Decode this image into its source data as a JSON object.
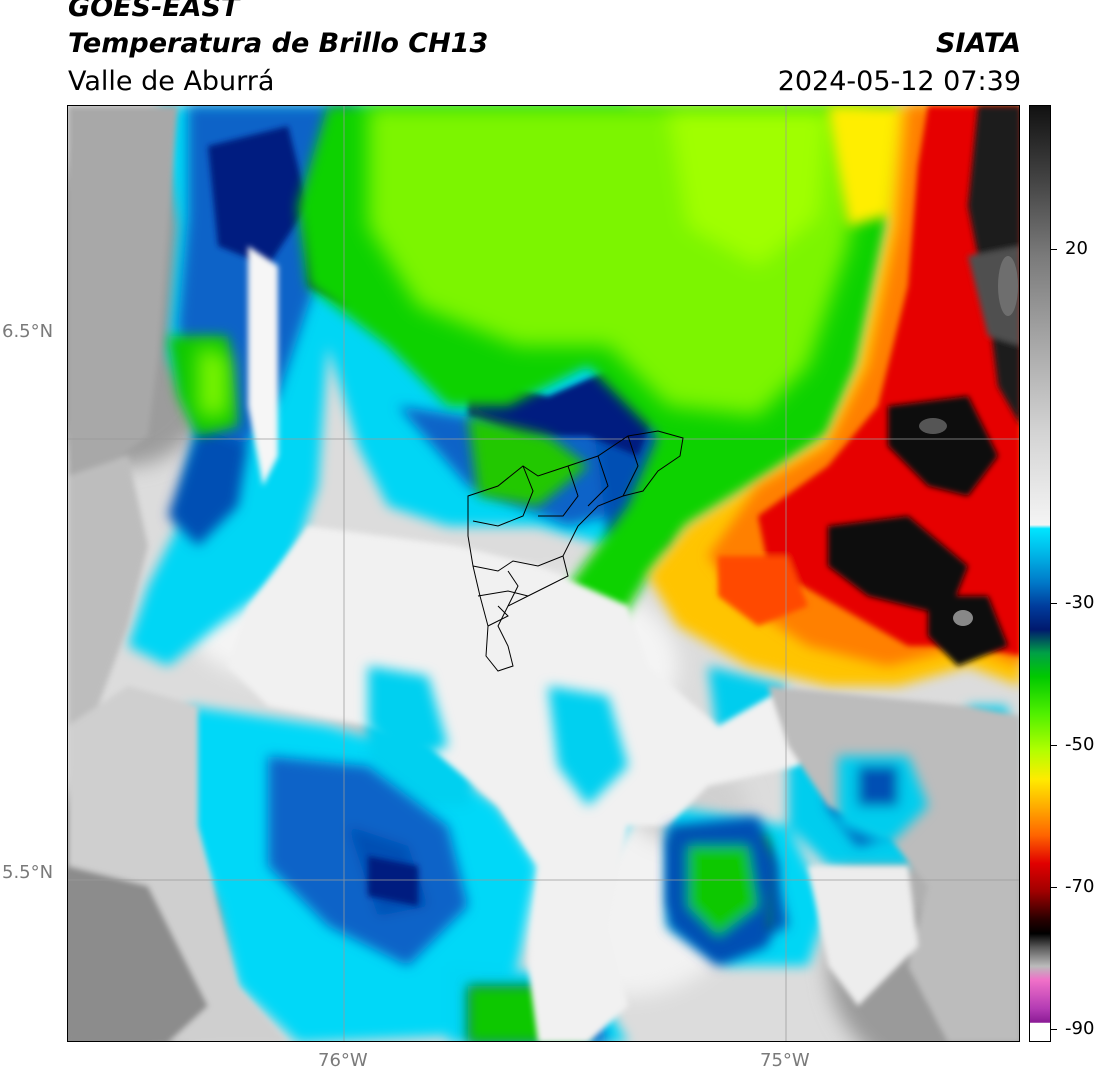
{
  "header": {
    "satellite": "GOES-EAST",
    "product": "Temperatura de Brillo CH13",
    "organization": "SIATA",
    "region": "Valle de Aburrá",
    "timestamp": "2024-05-12 07:39"
  },
  "axes": {
    "lat_labels": [
      "6.5°N",
      "5.5°N"
    ],
    "lon_labels": [
      "76°W",
      "75°W"
    ]
  },
  "colorbar": {
    "tick_labels": [
      "20",
      "-30",
      "-50",
      "-70",
      "-90"
    ],
    "colors": {
      "warm_gray_light": "#f4f4f4",
      "warm_gray_dark": "#6e6e6e",
      "cyan": "#00e5ff",
      "blue": "#0050b4",
      "navy": "#001e80",
      "green": "#00c800",
      "lime": "#80ff00",
      "yellow": "#ffeb00",
      "orange": "#ff8c00",
      "red": "#e10000",
      "black": "#000000",
      "pink": "#f070c8",
      "purple": "#8c1c96"
    }
  },
  "map": {
    "basemap": "municipal-boundaries"
  }
}
